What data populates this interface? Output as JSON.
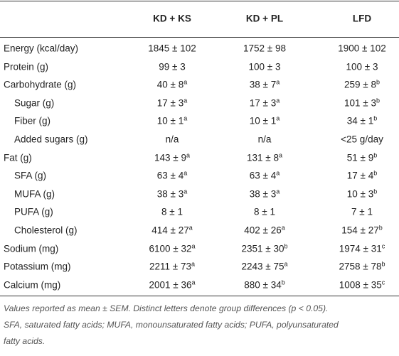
{
  "table": {
    "header": [
      "KD + KS",
      "KD + PL",
      "LFD"
    ],
    "rows": [
      {
        "label": "Energy (kcal/day)",
        "cells": [
          "1845 ± 102",
          "1752 ± 98",
          "1900 ± 102"
        ]
      },
      {
        "label": "Protein (g)",
        "cells": [
          "99 ± 3",
          "100 ± 3",
          "100 ± 3"
        ]
      },
      {
        "label": "Carbohydrate (g)",
        "cells": [
          {
            "value": "40 ± 8",
            "sup": "a"
          },
          {
            "value": "38 ± 7",
            "sup": "a"
          },
          {
            "value": "259 ± 8",
            "sup": "b"
          }
        ],
        "children": [
          {
            "label": "Sugar (g)",
            "cells": [
              {
                "value": "17 ± 3",
                "sup": "a"
              },
              {
                "value": "17 ± 3",
                "sup": "a"
              },
              {
                "value": "101 ± 3",
                "sup": "b"
              }
            ]
          },
          {
            "label": "Fiber (g)",
            "cells": [
              {
                "value": "10 ± 1",
                "sup": "a"
              },
              {
                "value": "10 ± 1",
                "sup": "a"
              },
              {
                "value": "34 ± 1",
                "sup": "b"
              }
            ]
          },
          {
            "label": "Added sugars (g)",
            "cells": [
              "n/a",
              "n/a",
              "<25 g/day"
            ]
          }
        ]
      },
      {
        "label": "Fat (g)",
        "cells": [
          {
            "value": "143 ± 9",
            "sup": "a"
          },
          {
            "value": "131 ± 8",
            "sup": "a"
          },
          {
            "value": "51 ± 9",
            "sup": "b"
          }
        ],
        "children": [
          {
            "label": "SFA (g)",
            "cells": [
              {
                "value": "63 ± 4",
                "sup": "a"
              },
              {
                "value": "63 ± 4",
                "sup": "a"
              },
              {
                "value": "17 ± 4",
                "sup": "b"
              }
            ]
          },
          {
            "label": "MUFA (g)",
            "cells": [
              {
                "value": "38 ± 3",
                "sup": "a"
              },
              {
                "value": "38 ± 3",
                "sup": "a"
              },
              {
                "value": "10 ± 3",
                "sup": "b"
              }
            ]
          },
          {
            "label": "PUFA (g)",
            "cells": [
              "8 ± 1",
              "8 ± 1",
              "7 ± 1"
            ]
          },
          {
            "label": "Cholesterol (g)",
            "cells": [
              {
                "value": "414 ± 27",
                "sup": "a"
              },
              {
                "value": "402 ± 26",
                "sup": "a"
              },
              {
                "value": "154 ± 27",
                "sup": "b"
              }
            ]
          }
        ]
      },
      {
        "label": "Sodium (mg)",
        "cells": [
          {
            "value": "6100 ± 32",
            "sup": "a"
          },
          {
            "value": "2351 ± 30",
            "sup": "b"
          },
          {
            "value": "1974 ± 31",
            "sup": "c"
          }
        ]
      },
      {
        "label": "Potassium (mg)",
        "cells": [
          {
            "value": "2211 ± 73",
            "sup": "a"
          },
          {
            "value": "2243 ± 75",
            "sup": "a"
          },
          {
            "value": "2758 ± 78",
            "sup": "b"
          }
        ]
      },
      {
        "label": "Calcium (mg)",
        "cells": [
          {
            "value": "2001 ± 36",
            "sup": "a"
          },
          {
            "value": "880 ± 34",
            "sup": "b"
          },
          {
            "value": "1008 ± 35",
            "sup": "c"
          }
        ]
      }
    ],
    "footnote": [
      "Values reported as mean ± SEM. Distinct letters denote group differences (p < 0.05).",
      "SFA, saturated fatty acids; MUFA, monounsaturated fatty acids; PUFA, polyunsaturated",
      "fatty acids."
    ]
  }
}
